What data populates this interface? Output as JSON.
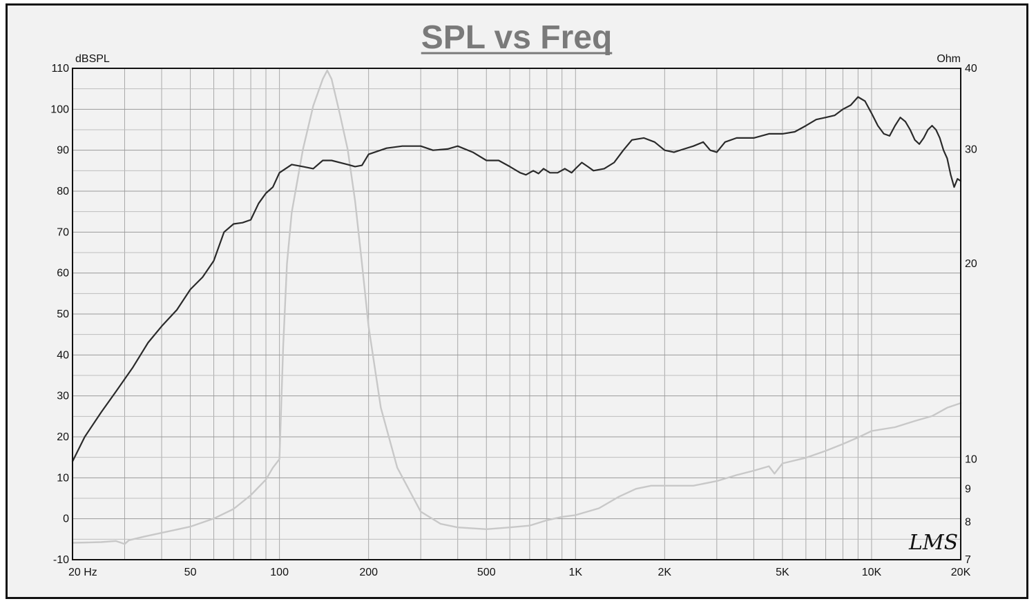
{
  "chart_data": {
    "type": "line",
    "title": "SPL vs Freq",
    "left_axis_unit": "dBSPL",
    "right_axis_unit": "Ohm",
    "x_scale": "log",
    "xlim": [
      20,
      20000
    ],
    "ylim_left": [
      -10,
      110
    ],
    "ylim_right_log": [
      7,
      40
    ],
    "x_ticks": [
      {
        "value": 20,
        "label": "20  Hz"
      },
      {
        "value": 50,
        "label": "50"
      },
      {
        "value": 100,
        "label": "100"
      },
      {
        "value": 200,
        "label": "200"
      },
      {
        "value": 500,
        "label": "500"
      },
      {
        "value": 1000,
        "label": "1K"
      },
      {
        "value": 2000,
        "label": "2K"
      },
      {
        "value": 5000,
        "label": "5K"
      },
      {
        "value": 10000,
        "label": "10K"
      },
      {
        "value": 20000,
        "label": "20K"
      }
    ],
    "y_ticks_left": [
      -10,
      0,
      10,
      20,
      30,
      40,
      50,
      60,
      70,
      80,
      90,
      100,
      110
    ],
    "y_ticks_right": [
      7,
      8,
      9,
      10,
      20,
      30,
      40
    ],
    "grid": true,
    "series": [
      {
        "axis": "left",
        "color": "#2a2a2a",
        "points": [
          [
            20,
            14
          ],
          [
            22,
            20
          ],
          [
            25,
            26
          ],
          [
            28,
            31
          ],
          [
            32,
            37
          ],
          [
            36,
            43
          ],
          [
            40,
            47
          ],
          [
            45,
            51
          ],
          [
            50,
            56
          ],
          [
            55,
            59
          ],
          [
            60,
            63
          ],
          [
            65,
            70
          ],
          [
            70,
            72
          ],
          [
            75,
            72.3
          ],
          [
            80,
            73
          ],
          [
            85,
            77
          ],
          [
            90,
            79.5
          ],
          [
            95,
            81
          ],
          [
            100,
            84.5
          ],
          [
            110,
            86.5
          ],
          [
            120,
            86
          ],
          [
            130,
            85.5
          ],
          [
            140,
            87.5
          ],
          [
            150,
            87.5
          ],
          [
            170,
            86.5
          ],
          [
            180,
            86
          ],
          [
            190,
            86.3
          ],
          [
            200,
            89
          ],
          [
            230,
            90.5
          ],
          [
            260,
            91
          ],
          [
            300,
            91
          ],
          [
            330,
            90
          ],
          [
            370,
            90.3
          ],
          [
            400,
            91
          ],
          [
            450,
            89.5
          ],
          [
            500,
            87.5
          ],
          [
            550,
            87.5
          ],
          [
            600,
            86
          ],
          [
            650,
            84.5
          ],
          [
            680,
            84
          ],
          [
            720,
            85
          ],
          [
            750,
            84.3
          ],
          [
            780,
            85.5
          ],
          [
            820,
            84.5
          ],
          [
            870,
            84.5
          ],
          [
            920,
            85.5
          ],
          [
            970,
            84.5
          ],
          [
            1000,
            85.5
          ],
          [
            1050,
            87
          ],
          [
            1100,
            86
          ],
          [
            1150,
            85
          ],
          [
            1250,
            85.5
          ],
          [
            1350,
            87
          ],
          [
            1450,
            90
          ],
          [
            1550,
            92.5
          ],
          [
            1700,
            93
          ],
          [
            1850,
            92
          ],
          [
            2000,
            90
          ],
          [
            2150,
            89.5
          ],
          [
            2300,
            90.2
          ],
          [
            2500,
            91
          ],
          [
            2700,
            92
          ],
          [
            2850,
            90
          ],
          [
            3000,
            89.5
          ],
          [
            3200,
            92
          ],
          [
            3500,
            93
          ],
          [
            4000,
            93
          ],
          [
            4500,
            94
          ],
          [
            5000,
            94
          ],
          [
            5500,
            94.5
          ],
          [
            6000,
            96
          ],
          [
            6500,
            97.5
          ],
          [
            7000,
            98
          ],
          [
            7500,
            98.5
          ],
          [
            8000,
            100
          ],
          [
            8500,
            101
          ],
          [
            9000,
            103
          ],
          [
            9500,
            102
          ],
          [
            10000,
            99
          ],
          [
            10500,
            96
          ],
          [
            11000,
            94
          ],
          [
            11500,
            93.5
          ],
          [
            12000,
            96
          ],
          [
            12500,
            98
          ],
          [
            13000,
            97
          ],
          [
            13500,
            95
          ],
          [
            14000,
            92.5
          ],
          [
            14500,
            91.5
          ],
          [
            15000,
            93
          ],
          [
            15500,
            95
          ],
          [
            16000,
            96
          ],
          [
            16500,
            95
          ],
          [
            17000,
            93
          ],
          [
            17500,
            90
          ],
          [
            18000,
            88
          ],
          [
            18500,
            84
          ],
          [
            19000,
            81
          ],
          [
            19500,
            83
          ],
          [
            20000,
            82.5
          ]
        ]
      },
      {
        "axis": "right",
        "color": "#c8c8c8",
        "points": [
          [
            20,
            7.43
          ],
          [
            25,
            7.45
          ],
          [
            28,
            7.48
          ],
          [
            30,
            7.4
          ],
          [
            31,
            7.5
          ],
          [
            35,
            7.6
          ],
          [
            40,
            7.7
          ],
          [
            50,
            7.87
          ],
          [
            60,
            8.1
          ],
          [
            70,
            8.38
          ],
          [
            80,
            8.8
          ],
          [
            90,
            9.3
          ],
          [
            95,
            9.7
          ],
          [
            100,
            10.0
          ],
          [
            103,
            15
          ],
          [
            106,
            20
          ],
          [
            110,
            24
          ],
          [
            120,
            30
          ],
          [
            130,
            35
          ],
          [
            140,
            38.5
          ],
          [
            145,
            39.7
          ],
          [
            150,
            38.5
          ],
          [
            160,
            34
          ],
          [
            170,
            30
          ],
          [
            180,
            25
          ],
          [
            190,
            20
          ],
          [
            200,
            16
          ],
          [
            220,
            12
          ],
          [
            250,
            9.7
          ],
          [
            300,
            8.3
          ],
          [
            350,
            7.95
          ],
          [
            400,
            7.85
          ],
          [
            500,
            7.8
          ],
          [
            600,
            7.85
          ],
          [
            700,
            7.9
          ],
          [
            800,
            8.05
          ],
          [
            900,
            8.15
          ],
          [
            1000,
            8.2
          ],
          [
            1200,
            8.4
          ],
          [
            1400,
            8.75
          ],
          [
            1600,
            9.0
          ],
          [
            1800,
            9.1
          ],
          [
            2000,
            9.1
          ],
          [
            2500,
            9.1
          ],
          [
            3000,
            9.25
          ],
          [
            3500,
            9.45
          ],
          [
            4000,
            9.6
          ],
          [
            4500,
            9.75
          ],
          [
            4700,
            9.5
          ],
          [
            5000,
            9.85
          ],
          [
            6000,
            10.05
          ],
          [
            7000,
            10.3
          ],
          [
            8000,
            10.55
          ],
          [
            9000,
            10.8
          ],
          [
            10000,
            11.05
          ],
          [
            12000,
            11.2
          ],
          [
            14000,
            11.45
          ],
          [
            16000,
            11.65
          ],
          [
            18000,
            12.0
          ],
          [
            20000,
            12.2
          ]
        ]
      }
    ],
    "watermark": "LMS"
  }
}
